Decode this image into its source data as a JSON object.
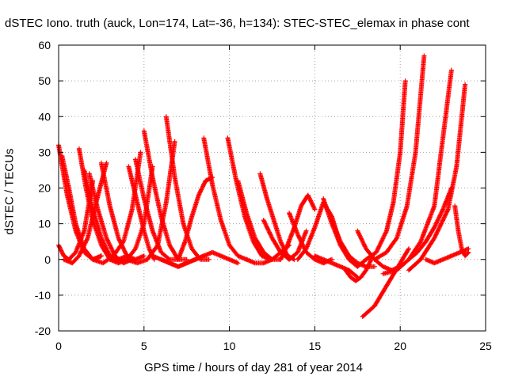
{
  "chart_data": {
    "type": "scatter",
    "title": "dSTEC Iono. truth (auck, Lon=174, Lat=-36, h=134): STEC-STEC_elemax in phase cont",
    "xlabel": "GPS time / hours of day 281 of year 2014",
    "ylabel": "dSTEC  / TECUs",
    "xlim": [
      0,
      25
    ],
    "ylim": [
      -20,
      60
    ],
    "xticks": [
      0,
      5,
      10,
      15,
      20,
      25
    ],
    "yticks": [
      -20,
      -10,
      0,
      10,
      20,
      30,
      40,
      50,
      60
    ],
    "grid": true,
    "marker": "+",
    "color": "#ff0000",
    "series": [
      {
        "x": [
          0.0,
          0.5,
          1.0,
          1.5,
          2.0,
          2.5
        ],
        "y": [
          32,
          18,
          8,
          2,
          0,
          1
        ]
      },
      {
        "x": [
          0.0,
          0.3,
          0.6,
          1.0,
          1.5,
          2.0
        ],
        "y": [
          4,
          1,
          0,
          2,
          8,
          22
        ]
      },
      {
        "x": [
          0.2,
          0.6,
          1.0,
          1.5,
          2.0,
          2.5
        ],
        "y": [
          29,
          20,
          10,
          3,
          0,
          1
        ]
      },
      {
        "x": [
          0.3,
          0.8,
          1.2,
          1.7,
          2.2,
          2.8
        ],
        "y": [
          0,
          -1,
          1,
          6,
          16,
          27
        ]
      },
      {
        "x": [
          1.2,
          1.6,
          2.0,
          2.5,
          3.0,
          3.6
        ],
        "y": [
          31,
          20,
          11,
          4,
          0,
          0
        ]
      },
      {
        "x": [
          1.5,
          2.0,
          2.5,
          3.0,
          3.5,
          4.0
        ],
        "y": [
          25,
          14,
          6,
          1,
          0,
          1
        ]
      },
      {
        "x": [
          1.8,
          2.3,
          2.8,
          3.3,
          3.8,
          4.3
        ],
        "y": [
          24,
          14,
          6,
          1,
          -1,
          0
        ]
      },
      {
        "x": [
          2.5,
          3.0,
          3.5,
          4.0,
          4.5,
          5.0
        ],
        "y": [
          27,
          15,
          6,
          1,
          0,
          1
        ]
      },
      {
        "x": [
          2.0,
          2.6,
          3.2,
          3.8,
          4.3,
          4.8
        ],
        "y": [
          0,
          -1,
          1,
          5,
          14,
          30
        ]
      },
      {
        "x": [
          3.0,
          3.5,
          4.0,
          4.5,
          5.0,
          5.5
        ],
        "y": [
          0,
          -1,
          0,
          3,
          10,
          26
        ]
      },
      {
        "x": [
          4.1,
          4.4,
          4.7,
          5.0,
          5.3,
          5.6
        ],
        "y": [
          26,
          20,
          14,
          8,
          3,
          0
        ]
      },
      {
        "x": [
          4.5,
          5.0,
          5.5,
          6.0,
          6.5,
          7.0
        ],
        "y": [
          28,
          17,
          8,
          2,
          0,
          0
        ]
      },
      {
        "x": [
          5.0,
          5.5,
          6.0,
          6.5,
          7.0,
          7.5
        ],
        "y": [
          36,
          23,
          12,
          4,
          0,
          0
        ]
      },
      {
        "x": [
          4.0,
          4.6,
          5.2,
          5.8,
          6.3,
          6.8
        ],
        "y": [
          0,
          -1,
          0,
          4,
          16,
          33
        ]
      },
      {
        "x": [
          6.3,
          6.8,
          7.3,
          7.8,
          8.3,
          8.8
        ],
        "y": [
          40,
          23,
          10,
          3,
          0,
          0
        ]
      },
      {
        "x": [
          5.5,
          6.0,
          6.5,
          7.0,
          7.5,
          8.0
        ],
        "y": [
          1,
          0,
          -1,
          -2,
          -1,
          0
        ]
      },
      {
        "x": [
          6.0,
          6.5,
          7.0,
          7.5,
          8.0,
          8.5
        ],
        "y": [
          0,
          -1,
          -2,
          -1,
          0,
          1
        ]
      },
      {
        "x": [
          7.0,
          7.4,
          7.8,
          8.2,
          8.6,
          9.0
        ],
        "y": [
          0,
          5,
          12,
          18,
          22,
          23
        ]
      },
      {
        "x": [
          8.5,
          9.0,
          9.5,
          10.0,
          10.5,
          11.0
        ],
        "y": [
          34,
          21,
          11,
          4,
          1,
          0
        ]
      },
      {
        "x": [
          8.0,
          8.5,
          9.0,
          9.5,
          10.0,
          10.5
        ],
        "y": [
          0,
          1,
          2,
          1,
          0,
          -1
        ]
      },
      {
        "x": [
          9.9,
          10.4,
          10.9,
          11.4,
          11.9,
          12.4
        ],
        "y": [
          34,
          22,
          12,
          5,
          1,
          0
        ]
      },
      {
        "x": [
          10.5,
          11.0,
          11.5,
          12.0,
          12.5,
          13.0
        ],
        "y": [
          22,
          13,
          6,
          2,
          0,
          0
        ]
      },
      {
        "x": [
          11.0,
          11.5,
          12.0,
          12.5,
          13.0,
          13.5
        ],
        "y": [
          0,
          -1,
          -1,
          0,
          2,
          4
        ]
      },
      {
        "x": [
          11.8,
          12.2,
          12.6,
          13.0,
          13.4,
          13.8
        ],
        "y": [
          24,
          17,
          11,
          5,
          1,
          0
        ]
      },
      {
        "x": [
          12.0,
          12.5,
          13.0,
          13.5,
          14.0,
          14.5
        ],
        "y": [
          11,
          6,
          2,
          0,
          2,
          8
        ]
      },
      {
        "x": [
          13.0,
          13.4,
          13.8,
          14.2,
          14.6,
          15.0
        ],
        "y": [
          0,
          4,
          9,
          15,
          18,
          14
        ]
      },
      {
        "x": [
          13.5,
          14.0,
          14.5,
          15.0,
          15.5,
          16.0
        ],
        "y": [
          13,
          7,
          2,
          0,
          -1,
          0
        ]
      },
      {
        "x": [
          14.0,
          14.5,
          15.0,
          15.5,
          16.0,
          16.5
        ],
        "y": [
          0,
          3,
          9,
          16,
          12,
          4
        ]
      },
      {
        "x": [
          15.5,
          16.0,
          16.5,
          17.0,
          17.5,
          18.0
        ],
        "y": [
          17,
          10,
          4,
          0,
          -2,
          0
        ]
      },
      {
        "x": [
          15.0,
          15.5,
          16.0,
          16.5,
          17.0,
          17.5
        ],
        "y": [
          1,
          0,
          -1,
          -2,
          -3,
          -5
        ]
      },
      {
        "x": [
          16.0,
          16.5,
          17.0,
          17.5,
          18.0,
          18.5
        ],
        "y": [
          11,
          5,
          1,
          -1,
          -2,
          -2
        ]
      },
      {
        "x": [
          16.8,
          17.1,
          17.4,
          17.7,
          18.0,
          18.3
        ],
        "y": [
          -3,
          -5,
          -6,
          -5,
          -3,
          0
        ]
      },
      {
        "x": [
          17.5,
          18.0,
          18.5,
          19.0,
          19.5,
          20.0
        ],
        "y": [
          8,
          3,
          0,
          -2,
          -3,
          -2
        ]
      },
      {
        "x": [
          17.8,
          18.5,
          19.0,
          19.5,
          20.0,
          20.5
        ],
        "y": [
          -16,
          -13,
          -9,
          -5,
          -1,
          3
        ]
      },
      {
        "x": [
          18.0,
          18.6,
          19.2,
          19.6,
          20.0,
          20.3
        ],
        "y": [
          0,
          2,
          8,
          16,
          30,
          50
        ]
      },
      {
        "x": [
          18.5,
          19.2,
          19.8,
          20.4,
          20.9,
          21.4
        ],
        "y": [
          0,
          2,
          6,
          15,
          30,
          57
        ]
      },
      {
        "x": [
          19.0,
          19.8,
          20.5,
          21.2,
          22.0,
          23.0
        ],
        "y": [
          -4,
          -3,
          0,
          5,
          15,
          53
        ]
      },
      {
        "x": [
          20.5,
          21.0,
          21.5,
          22.0,
          22.5,
          23.0
        ],
        "y": [
          0,
          2,
          5,
          9,
          14,
          20
        ]
      },
      {
        "x": [
          20.5,
          21.2,
          22.0,
          22.8,
          23.3,
          23.8
        ],
        "y": [
          -3,
          0,
          6,
          14,
          26,
          49
        ]
      },
      {
        "x": [
          21.5,
          22.0,
          22.5,
          23.0,
          23.5,
          24.0
        ],
        "y": [
          0,
          -1,
          0,
          1,
          2,
          3
        ]
      },
      {
        "x": [
          23.2,
          23.4,
          23.6,
          23.8,
          24.0
        ],
        "y": [
          15,
          8,
          3,
          1,
          2
        ]
      }
    ]
  }
}
